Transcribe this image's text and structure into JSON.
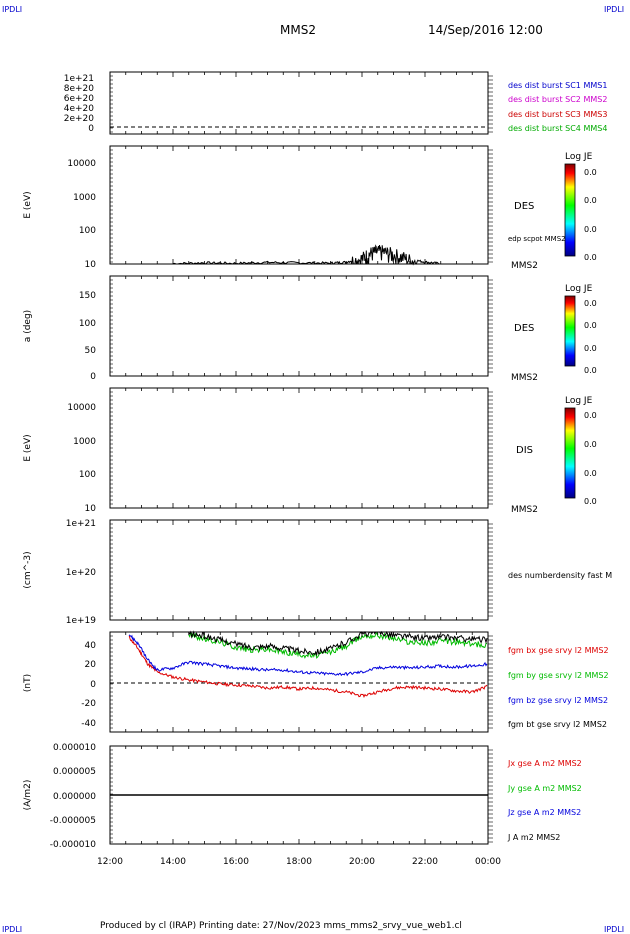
{
  "header": {
    "corner_left": "IPDLI",
    "corner_right": "IPDLI",
    "spacecraft": "MMS2",
    "datetime": "14/Sep/2016 12:00"
  },
  "footer": {
    "text": "Produced by cl (IRAP)   Printing date: 27/Nov/2023   mms_mms2_srvy_vue_web1.cl",
    "corner_left": "IPDLI",
    "corner_right": "IPDLI"
  },
  "colors": {
    "sc1": "#0000cc",
    "sc2": "#cc00cc",
    "sc3": "#cc0000",
    "sc4": "#00aa00",
    "bx": "#dd0000",
    "by": "#00bb00",
    "bz": "#0000dd",
    "bt": "#000000"
  },
  "chart_data": [
    {
      "type": "line",
      "panel": "burst",
      "ylabel": "",
      "yticks": [
        "1e+21",
        "8e+20",
        "6e+20",
        "4e+20",
        "2e+20",
        "0"
      ],
      "legend": [
        {
          "label": "des dist burst SC1 MMS1",
          "color": "#0000cc"
        },
        {
          "label": "des dist burst SC2 MMS2",
          "color": "#cc00cc"
        },
        {
          "label": "des dist burst SC3 MMS3",
          "color": "#cc0000"
        },
        {
          "label": "des dist burst SC4 MMS4",
          "color": "#00aa00"
        }
      ],
      "reference_line": 0
    },
    {
      "type": "heatmap",
      "panel": "des_energy",
      "ylabel": "E (eV)",
      "yticks": [
        "10000",
        "1000",
        "100",
        "10"
      ],
      "label": "DES",
      "sublabel": "edp scpot MMS2",
      "sc_label": "MMS2",
      "colorbar": {
        "title": "Log JE",
        "ticks": [
          "0.0",
          "0.0",
          "0.0",
          "0.0"
        ]
      },
      "scpot_series": {
        "x_hours": [
          14.0,
          15.0,
          16.0,
          17.0,
          18.0,
          19.0,
          19.5,
          20.0,
          20.3,
          20.6,
          21.0,
          21.5,
          22.0,
          22.5
        ],
        "y_ev": [
          10,
          10.5,
          10.2,
          10.8,
          10.5,
          10.3,
          11,
          14,
          20,
          22,
          18,
          13,
          11,
          10
        ]
      }
    },
    {
      "type": "heatmap",
      "panel": "des_pitch",
      "ylabel": "a (deg)",
      "yticks": [
        "150",
        "100",
        "50",
        "0"
      ],
      "ylim": [
        0,
        180
      ],
      "label": "DES",
      "sc_label": "MMS2",
      "colorbar": {
        "title": "Log JE",
        "ticks": [
          "0.0",
          "0.0",
          "0.0",
          "0.0"
        ]
      }
    },
    {
      "type": "heatmap",
      "panel": "dis_energy",
      "ylabel": "E (eV)",
      "yticks": [
        "10000",
        "1000",
        "100",
        "10"
      ],
      "label": "DIS",
      "sc_label": "MMS2",
      "colorbar": {
        "title": "Log JE",
        "ticks": [
          "0.0",
          "0.0",
          "0.0",
          "0.0"
        ]
      }
    },
    {
      "type": "line",
      "panel": "density",
      "ylabel": "(cm^-3)",
      "yticks": [
        "1e+21",
        "1e+20",
        "1e+19"
      ],
      "legend": [
        {
          "label": "des numberdensity fast M",
          "color": "#000000"
        }
      ]
    },
    {
      "type": "line",
      "panel": "fgm",
      "ylabel": "(nT)",
      "yticks": [
        "40",
        "20",
        "0",
        "-20",
        "-40"
      ],
      "ylim": [
        -50,
        50
      ],
      "reference_line": 0,
      "x_hours": [
        12.6,
        12.9,
        13.2,
        13.5,
        14.0,
        14.5,
        15.0,
        15.5,
        16.0,
        16.5,
        17.0,
        17.5,
        18.0,
        18.5,
        19.0,
        19.5,
        20.0,
        20.5,
        21.0,
        21.5,
        22.0,
        22.5,
        23.0,
        23.5,
        24.0
      ],
      "series": [
        {
          "name": "fgm bx gse srvy l2 MMS2",
          "color": "#dd0000",
          "values": [
            45,
            33,
            18,
            10,
            5,
            2,
            0,
            -2,
            -3,
            -4,
            -6,
            -5,
            -7,
            -6,
            -8,
            -10,
            -14,
            -10,
            -6,
            -5,
            -6,
            -7,
            -9,
            -10,
            -4
          ]
        },
        {
          "name": "fgm by gse srvy l2 MMS2",
          "color": "#00bb00",
          "values": [
            null,
            null,
            null,
            null,
            null,
            48,
            43,
            40,
            35,
            32,
            33,
            30,
            28,
            26,
            30,
            36,
            46,
            47,
            44,
            40,
            39,
            41,
            40,
            38,
            37
          ]
        },
        {
          "name": "fgm bz gse srvy l2 MMS2",
          "color": "#0000dd",
          "values": [
            48,
            38,
            22,
            12,
            14,
            20,
            18,
            16,
            14,
            13,
            12,
            12,
            10,
            9,
            8,
            8,
            10,
            14,
            15,
            14,
            15,
            16,
            15,
            16,
            18
          ]
        },
        {
          "name": "fgm bt gse srvy l2 MMS2",
          "color": "#000000",
          "values": [
            null,
            null,
            null,
            null,
            null,
            48,
            46,
            42,
            38,
            35,
            36,
            34,
            31,
            30,
            33,
            40,
            48,
            50,
            47,
            45,
            44,
            45,
            44,
            43,
            42
          ]
        }
      ]
    },
    {
      "type": "line",
      "panel": "current",
      "ylabel": "(A/m2)",
      "yticks": [
        "0.000010",
        "0.000005",
        "0.000000",
        "-0.000005",
        "-0.000010"
      ],
      "ylim": [
        -1e-05,
        1e-05
      ],
      "x_hours": [
        12.0,
        24.0
      ],
      "series": [
        {
          "name": "Jx gse A m2 MMS2",
          "color": "#dd0000",
          "values": [
            0,
            0
          ]
        },
        {
          "name": "Jy gse A m2 MMS2",
          "color": "#00bb00",
          "values": [
            0,
            0
          ]
        },
        {
          "name": "Jz gse A m2 MMS2",
          "color": "#0000dd",
          "values": [
            0,
            0
          ]
        },
        {
          "name": "J A m2 MMS2",
          "color": "#000000",
          "values": [
            0,
            0
          ]
        }
      ]
    }
  ],
  "xaxis": {
    "range_hours": [
      12,
      24
    ],
    "ticks": [
      "12:00",
      "14:00",
      "16:00",
      "18:00",
      "20:00",
      "22:00",
      "00:00"
    ]
  }
}
